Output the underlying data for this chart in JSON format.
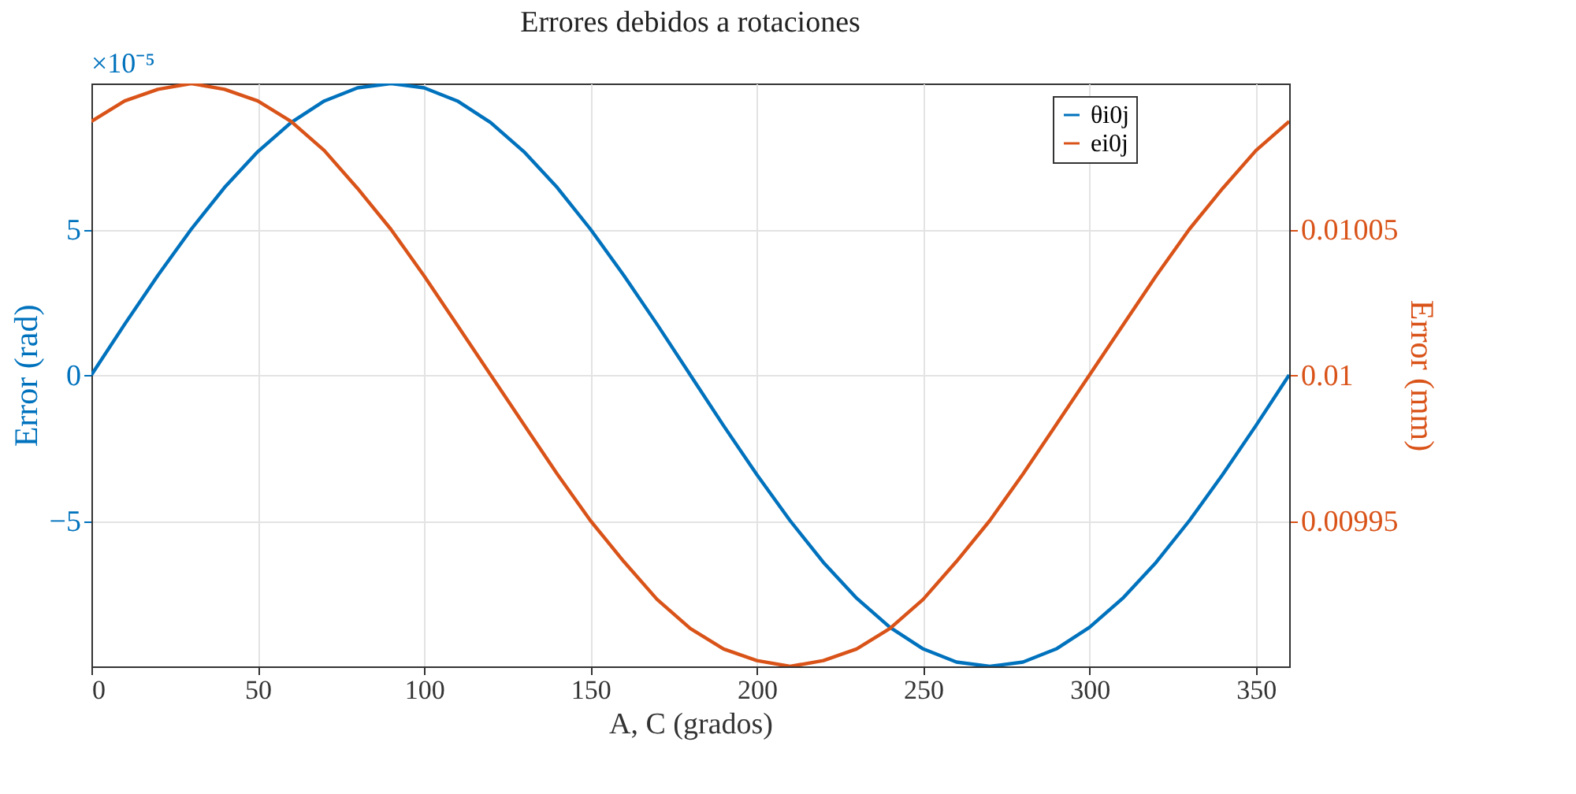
{
  "chart_data": {
    "type": "line",
    "title": "Errores debidos a rotaciones",
    "xlabel": "A, C (grados)",
    "ylabel": "Error (rad)",
    "y2label": "Error (mm)",
    "x": [
      0,
      10,
      20,
      30,
      40,
      50,
      60,
      70,
      80,
      90,
      100,
      110,
      120,
      130,
      140,
      150,
      160,
      170,
      180,
      190,
      200,
      210,
      220,
      230,
      240,
      250,
      260,
      270,
      280,
      290,
      300,
      310,
      320,
      330,
      340,
      350,
      360
    ],
    "series": [
      {
        "name": "θi0j",
        "color": "#0072bd",
        "values": [
          0,
          1.74,
          3.42,
          5,
          6.43,
          7.66,
          8.66,
          9.4,
          9.85,
          10,
          9.85,
          9.4,
          8.66,
          7.66,
          6.43,
          5,
          3.42,
          1.74,
          0,
          -1.74,
          -3.42,
          -5,
          -6.43,
          -7.66,
          -8.66,
          -9.4,
          -9.85,
          -10,
          -9.85,
          -9.4,
          -8.66,
          -7.66,
          -6.43,
          -5,
          -3.42,
          -1.74,
          0
        ]
      },
      {
        "name": "ei0j",
        "color": "#d95319",
        "axis": "y2",
        "values": [
          0.010087,
          0.010094,
          0.010098,
          0.0101,
          0.010098,
          0.010094,
          0.010087,
          0.010077,
          0.010064,
          0.01005,
          0.010034,
          0.010017,
          0.01,
          0.009983,
          0.009966,
          0.00995,
          0.009936,
          0.009923,
          0.009913,
          0.009906,
          0.009902,
          0.0099,
          0.009902,
          0.009906,
          0.009913,
          0.009923,
          0.009936,
          0.00995,
          0.009966,
          0.009983,
          0.01,
          0.010017,
          0.010034,
          0.01005,
          0.010064,
          0.010077,
          0.010087
        ]
      }
    ],
    "xlim": [
      0,
      360
    ],
    "xticks": [
      0,
      50,
      100,
      150,
      200,
      250,
      300,
      350
    ],
    "ylim": [
      -10,
      10
    ],
    "yticks": [
      -5,
      0,
      5
    ],
    "y2lim": [
      0.0099,
      0.0101
    ],
    "y2ticks": [
      0.00995,
      0.01,
      0.01005
    ],
    "annotations": [
      "×10⁻⁵"
    ],
    "grid": true,
    "legend": "top right",
    "line_style": "solid",
    "marker": "none"
  }
}
